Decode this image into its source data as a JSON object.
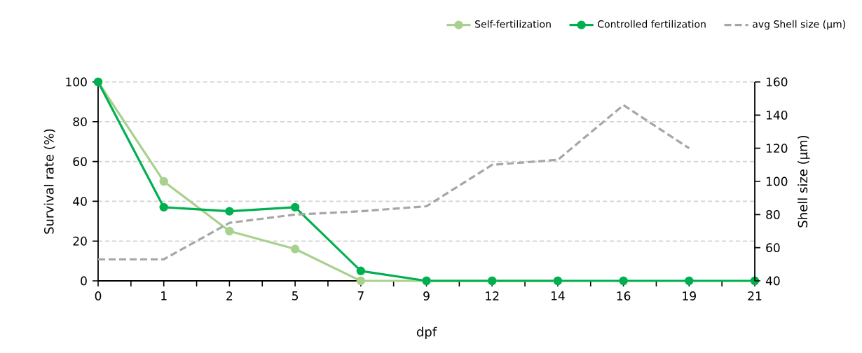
{
  "chart_data": {
    "type": "line",
    "xlabel": "dpf",
    "ylabel": "Survival rate (%)",
    "y2label": "Shell size (µm)",
    "categories": [
      "0",
      "1",
      "2",
      "5",
      "7",
      "9",
      "12",
      "14",
      "16",
      "19",
      "21"
    ],
    "series": [
      {
        "name": "Self-fertilization",
        "color": "#a9d18e",
        "marker": "circle",
        "line_style": "solid",
        "values": [
          100,
          50,
          25,
          16,
          0,
          0,
          0,
          0,
          null,
          null,
          null
        ]
      },
      {
        "name": "Controlled fertilization",
        "color": "#00b050",
        "marker": "circle",
        "line_style": "solid",
        "values": [
          100,
          37,
          35,
          37,
          5,
          0,
          0,
          0,
          0,
          0,
          0
        ]
      },
      {
        "name": "avg Shell size (µm)",
        "color": "#a6a6a6",
        "marker": "none",
        "line_style": "dashed",
        "axis": "y2",
        "values": [
          53,
          53,
          75,
          80,
          82,
          85,
          110,
          113,
          146,
          120,
          null
        ]
      }
    ],
    "ylim": [
      0,
      100
    ],
    "yticks": [
      0,
      20,
      40,
      60,
      80,
      100
    ],
    "y2lim": [
      40,
      160
    ],
    "y2ticks": [
      40,
      60,
      80,
      100,
      120,
      140,
      160
    ],
    "grid": "y",
    "legend": "top right"
  }
}
